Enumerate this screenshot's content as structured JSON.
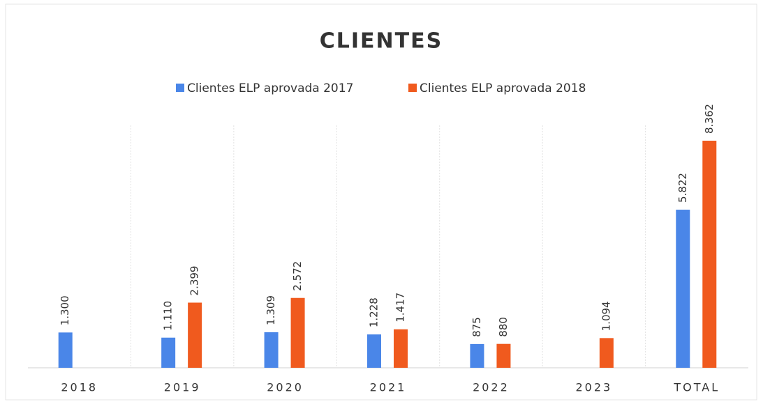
{
  "chart_data": {
    "type": "bar",
    "title": "CLIENTES",
    "categories": [
      "2018",
      "2019",
      "2020",
      "2021",
      "2022",
      "2023",
      "TOTAL"
    ],
    "series": [
      {
        "name": "Clientes ELP aprovada 2017",
        "color": "#4a86e8",
        "values": [
          1300,
          1110,
          1309,
          1228,
          875,
          null,
          5822
        ],
        "value_labels": [
          "1.300",
          "1.110",
          "1.309",
          "1.228",
          "875",
          null,
          "5.822"
        ]
      },
      {
        "name": "Clientes ELP aprovada 2018",
        "color": "#f05a1e",
        "values": [
          null,
          2399,
          2572,
          1417,
          880,
          1094,
          8362
        ],
        "value_labels": [
          null,
          "2.399",
          "2.572",
          "1.417",
          "880",
          "1.094",
          "8.362"
        ]
      }
    ],
    "legend": "top"
  }
}
